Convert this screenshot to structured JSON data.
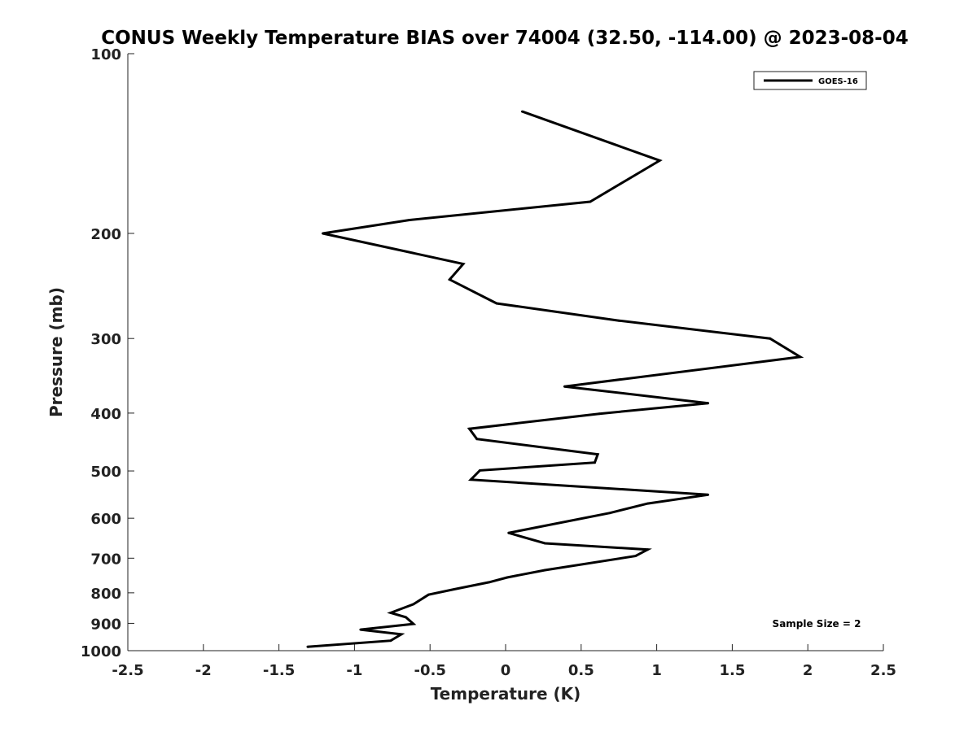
{
  "chart_data": {
    "type": "line",
    "title": "CONUS Weekly Temperature BIAS over 74004 (32.50, -114.00) @ 2023-08-04",
    "xlabel": "Temperature (K)",
    "ylabel": "Pressure (mb)",
    "xlim": [
      -2.5,
      2.5
    ],
    "ylim": [
      100,
      1000
    ],
    "y_scale": "log",
    "y_reversed": true,
    "x_ticks": [
      "-2.5",
      "-2",
      "-1.5",
      "-1",
      "-0.5",
      "0",
      "0.5",
      "1",
      "1.5",
      "2",
      "2.5"
    ],
    "x_tick_values": [
      -2.5,
      -2,
      -1.5,
      -1,
      -0.5,
      0,
      0.5,
      1,
      1.5,
      2,
      2.5
    ],
    "y_ticks": [
      "100",
      "200",
      "300",
      "400",
      "500",
      "600",
      "700",
      "800",
      "900",
      "1000"
    ],
    "y_tick_values": [
      100,
      200,
      300,
      400,
      500,
      600,
      700,
      800,
      900,
      1000
    ],
    "legend_position": "top-right",
    "grid": false,
    "series": [
      {
        "name": "GOES-16",
        "color": "#000000",
        "points": [
          {
            "x": 0.11,
            "y": 125
          },
          {
            "x": 1.02,
            "y": 151
          },
          {
            "x": 0.56,
            "y": 177
          },
          {
            "x": -0.64,
            "y": 190
          },
          {
            "x": -1.21,
            "y": 200
          },
          {
            "x": -0.28,
            "y": 225
          },
          {
            "x": -0.37,
            "y": 239
          },
          {
            "x": -0.06,
            "y": 262
          },
          {
            "x": 0.75,
            "y": 280
          },
          {
            "x": 1.75,
            "y": 300
          },
          {
            "x": 1.95,
            "y": 322
          },
          {
            "x": 0.39,
            "y": 361
          },
          {
            "x": 1.34,
            "y": 385
          },
          {
            "x": 0.62,
            "y": 401
          },
          {
            "x": -0.24,
            "y": 425
          },
          {
            "x": -0.19,
            "y": 442
          },
          {
            "x": 0.61,
            "y": 469
          },
          {
            "x": 0.59,
            "y": 484
          },
          {
            "x": -0.17,
            "y": 499
          },
          {
            "x": -0.23,
            "y": 517
          },
          {
            "x": 1.34,
            "y": 548
          },
          {
            "x": 0.94,
            "y": 567
          },
          {
            "x": 0.69,
            "y": 588
          },
          {
            "x": 0.02,
            "y": 635
          },
          {
            "x": 0.26,
            "y": 661
          },
          {
            "x": 0.94,
            "y": 677
          },
          {
            "x": 0.86,
            "y": 694
          },
          {
            "x": 0.26,
            "y": 733
          },
          {
            "x": 0.01,
            "y": 754
          },
          {
            "x": -0.11,
            "y": 768
          },
          {
            "x": -0.34,
            "y": 789
          },
          {
            "x": -0.51,
            "y": 806
          },
          {
            "x": -0.61,
            "y": 836
          },
          {
            "x": -0.76,
            "y": 864
          },
          {
            "x": -0.66,
            "y": 879
          },
          {
            "x": -0.61,
            "y": 902
          },
          {
            "x": -0.96,
            "y": 922
          },
          {
            "x": -0.69,
            "y": 939
          },
          {
            "x": -0.76,
            "y": 962
          },
          {
            "x": -1.31,
            "y": 985
          }
        ]
      }
    ],
    "annotations": [
      "Sample Size = 2"
    ]
  }
}
